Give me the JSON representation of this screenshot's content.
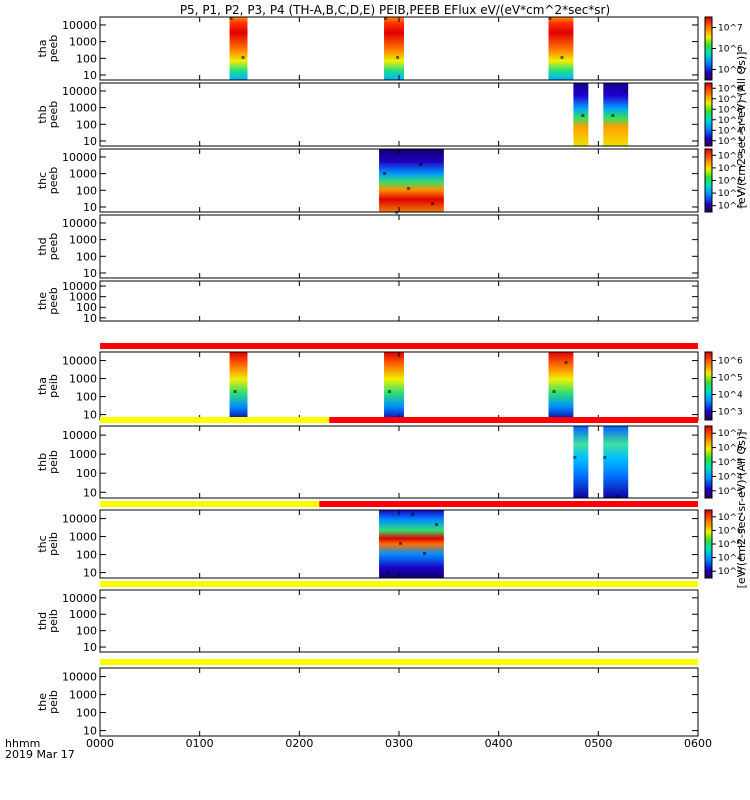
{
  "chart_data": {
    "type": "heatmap",
    "title": "P5, P1, P2, P3, P4 (TH-A,B,C,D,E) PEIB,PEEB EFlux eV/(eV*cm^2*sec*sr)",
    "time_axis": {
      "label": "hhmm",
      "date": "2019 Mar 17",
      "ticks": [
        "0000",
        "0100",
        "0200",
        "0300",
        "0400",
        "0500",
        "0600"
      ],
      "range_hours": [
        0,
        6
      ]
    },
    "y_axis": {
      "scale": "log",
      "ticks": [
        "10",
        "100",
        "1000",
        "10000"
      ],
      "range": [
        5,
        30000
      ]
    },
    "colorbar_labels": {
      "electron": "[eV/(cm2-sec-sr-eV) (All Qs)]",
      "ion": "[eV/(cm2-sec-sr-eV) (All Qs)]"
    },
    "panels": [
      {
        "probe": "tha",
        "species": "peeb",
        "label": [
          "tha",
          "peeb"
        ],
        "bursts": [
          [
            1.3,
            1.48
          ],
          [
            2.85,
            3.05
          ],
          [
            4.5,
            4.75
          ]
        ],
        "style": "hot",
        "flag": null
      },
      {
        "probe": "thb",
        "species": "peeb",
        "label": [
          "thb",
          "peeb"
        ],
        "bursts": [
          [
            4.75,
            4.9
          ],
          [
            5.05,
            5.3
          ]
        ],
        "style": "cool",
        "flag": null
      },
      {
        "probe": "thc",
        "species": "peeb",
        "label": [
          "thc",
          "peeb"
        ],
        "bursts": [
          [
            2.8,
            3.45
          ]
        ],
        "style": "split",
        "flag": null
      },
      {
        "probe": "thd",
        "species": "peeb",
        "label": [
          "thd",
          "peeb"
        ],
        "bursts": [],
        "style": "none",
        "flag": null
      },
      {
        "probe": "the",
        "species": "peeb",
        "label": [
          "the",
          "peeb"
        ],
        "bursts": [],
        "style": "none",
        "flag": null
      },
      {
        "probe": "tha",
        "species": "peib",
        "label": [
          "tha",
          "peib"
        ],
        "bursts": [
          [
            1.3,
            1.48
          ],
          [
            2.85,
            3.05
          ],
          [
            4.5,
            4.75
          ]
        ],
        "style": "ionhot",
        "flag": [
          {
            "from": 0,
            "to": 6,
            "color": "red"
          }
        ]
      },
      {
        "probe": "thb",
        "species": "peib",
        "label": [
          "thb",
          "peib"
        ],
        "bursts": [
          [
            4.75,
            4.9
          ],
          [
            5.05,
            5.3
          ]
        ],
        "style": "ioncool",
        "flag": [
          {
            "from": 0,
            "to": 2.3,
            "color": "yellow"
          },
          {
            "from": 2.3,
            "to": 6,
            "color": "red"
          }
        ]
      },
      {
        "probe": "thc",
        "species": "peib",
        "label": [
          "thc",
          "peib"
        ],
        "bursts": [
          [
            2.8,
            3.45
          ]
        ],
        "style": "ionsplit",
        "flag": [
          {
            "from": 0,
            "to": 2.2,
            "color": "yellow"
          },
          {
            "from": 2.2,
            "to": 6,
            "color": "red"
          }
        ]
      },
      {
        "probe": "thd",
        "species": "peib",
        "label": [
          "thd",
          "peib"
        ],
        "bursts": [],
        "style": "none",
        "flag": [
          {
            "from": 0,
            "to": 6,
            "color": "yellow"
          }
        ]
      },
      {
        "probe": "the",
        "species": "peib",
        "label": [
          "the",
          "peib"
        ],
        "bursts": [],
        "style": "none",
        "flag": [
          {
            "from": 0,
            "to": 6,
            "color": "yellow"
          }
        ]
      }
    ],
    "colorbars": [
      {
        "group": "electron",
        "ticks": [
          "10^5",
          "10^6",
          "10^7"
        ]
      },
      {
        "group": "electron",
        "ticks": [
          "10^3",
          "10^4",
          "10^5",
          "10^6",
          "10^7",
          "10^8"
        ]
      },
      {
        "group": "electron",
        "ticks": [
          "10^4",
          "10^5",
          "10^6",
          "10^7",
          "10^8"
        ]
      },
      {
        "group": "ion",
        "ticks": [
          "10^3",
          "10^4",
          "10^5",
          "10^6"
        ]
      },
      {
        "group": "ion",
        "ticks": [
          "10^3",
          "10^4",
          "10^5",
          "10^6",
          "10^7"
        ]
      },
      {
        "group": "ion",
        "ticks": [
          "10^3",
          "10^4",
          "10^5",
          "10^6",
          "10^7"
        ]
      }
    ]
  }
}
